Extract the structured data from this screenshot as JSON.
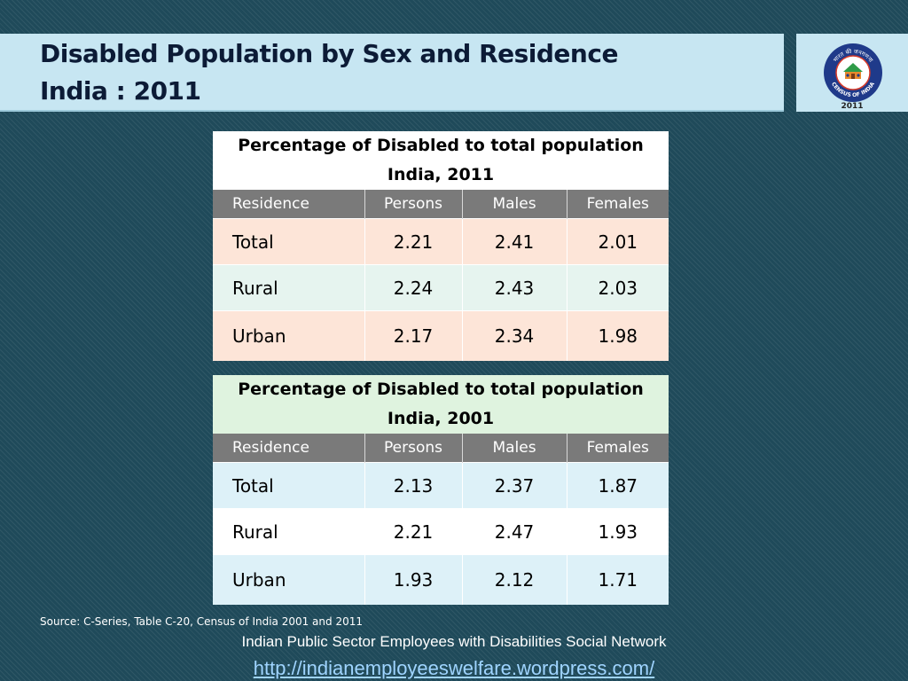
{
  "slide": {
    "title_line1": "Disabled Population by Sex and Residence",
    "title_line2": "India : 2011",
    "logo": {
      "ring_text": "भारत की जनगणना",
      "name": "CENSUS OF INDIA",
      "year": "2011"
    },
    "colors": {
      "title_band": "#c7e6f2",
      "table_header": "#7a7a7a",
      "row_peach": "#fde5d8",
      "row_mint": "#e6f4ef",
      "row_light_blue": "#ddf1f8",
      "caption_2001_bg": "#dff3df"
    }
  },
  "tables": [
    {
      "caption_line1": "Percentage of Disabled to total population",
      "caption_line2": "India, 2011",
      "caption_bg": "#ffffff",
      "headers": [
        "Residence",
        "Persons",
        "Males",
        "Females"
      ],
      "rows": [
        {
          "cells": [
            "Total",
            "2.21",
            "2.41",
            "2.01"
          ],
          "bg": "#fde5d8"
        },
        {
          "cells": [
            "Rural",
            "2.24",
            "2.43",
            "2.03"
          ],
          "bg": "#e6f4ef"
        },
        {
          "cells": [
            "Urban",
            "2.17",
            "2.34",
            "1.98"
          ],
          "bg": "#fde5d8"
        }
      ]
    },
    {
      "caption_line1": "Percentage of Disabled to total population",
      "caption_line2": "India, 2001",
      "caption_bg": "#dff3df",
      "headers": [
        "Residence",
        "Persons",
        "Males",
        "Females"
      ],
      "rows": [
        {
          "cells": [
            "Total",
            "2.13",
            "2.37",
            "1.87"
          ],
          "bg": "#ddf1f8"
        },
        {
          "cells": [
            "Rural",
            "2.21",
            "2.47",
            "1.93"
          ],
          "bg": "#ffffff"
        },
        {
          "cells": [
            "Urban",
            "1.93",
            "2.12",
            "1.71"
          ],
          "bg": "#ddf1f8"
        }
      ]
    }
  ],
  "source": "Source: C-Series, Table C-20, Census of India 2001 and  2011",
  "footer": {
    "network": "Indian Public Sector Employees with Disabilities Social Network",
    "url": "http://indianemployeeswelfare.wordpress.com/"
  }
}
